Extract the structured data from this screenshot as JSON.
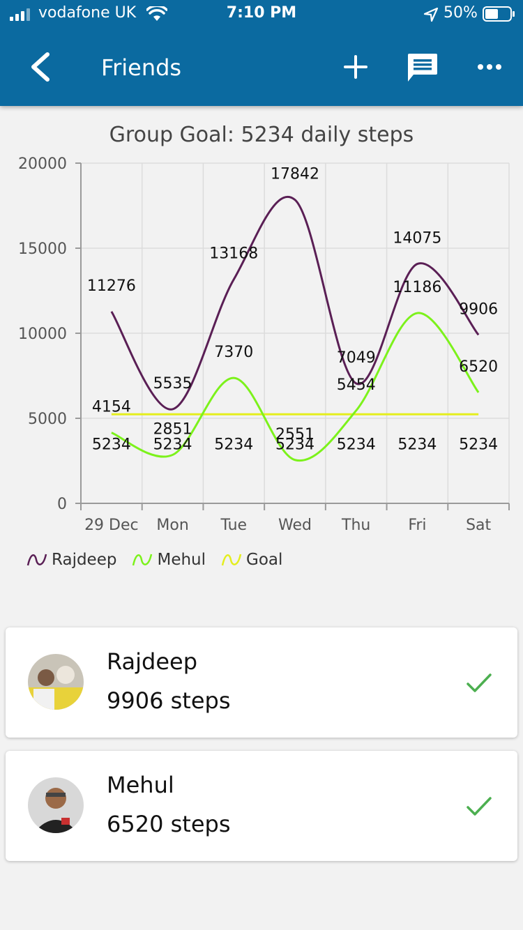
{
  "status_bar": {
    "carrier": "vodafone UK",
    "time": "7:10 PM",
    "battery": "50%"
  },
  "nav": {
    "title": "Friends",
    "back_icon": "chevron-left-icon",
    "add_icon": "plus-icon",
    "chat_icon": "chat-bubble-icon",
    "more_icon": "more-horizontal-icon"
  },
  "chart_data": {
    "type": "line",
    "title": "Group Goal: 5234 daily steps",
    "categories": [
      "29 Dec",
      "Mon",
      "Tue",
      "Wed",
      "Thu",
      "Fri",
      "Sat"
    ],
    "ylim": [
      0,
      20000
    ],
    "yticks": [
      "0",
      "5000",
      "10000",
      "15000",
      "20000"
    ],
    "grid": true,
    "legend_position": "bottom-left",
    "series": [
      {
        "name": "Rajdeep",
        "color": "#5a1f55",
        "values": [
          11276,
          5535,
          13168,
          17842,
          7049,
          14075,
          9906
        ]
      },
      {
        "name": "Mehul",
        "color": "#7cf21b",
        "values": [
          4154,
          2851,
          7370,
          2551,
          5454,
          11186,
          6520
        ]
      },
      {
        "name": "Goal",
        "color": "#e4ee1e",
        "values": [
          5234,
          5234,
          5234,
          5234,
          5234,
          5234,
          5234
        ]
      }
    ]
  },
  "friends": [
    {
      "name": "Rajdeep",
      "steps": "9906 steps",
      "status_icon": "checkmark-icon"
    },
    {
      "name": "Mehul",
      "steps": "6520 steps",
      "status_icon": "checkmark-icon"
    }
  ],
  "colors": {
    "app_bar": "#0b6aa0",
    "check": "#4caf50"
  }
}
